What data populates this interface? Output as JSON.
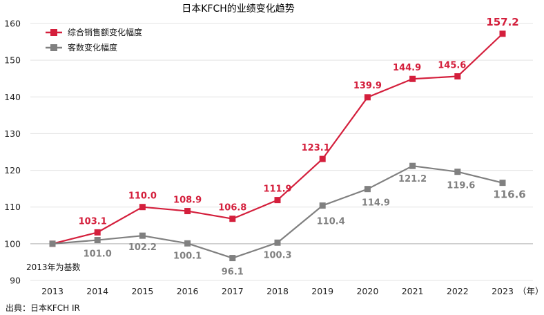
{
  "chart_data": {
    "type": "line",
    "title": "日本KFCH的业绩变化趋势",
    "x": [
      "2013",
      "2014",
      "2015",
      "2016",
      "2017",
      "2018",
      "2019",
      "2020",
      "2021",
      "2022",
      "2023"
    ],
    "x_unit": "（年）",
    "ylim": [
      90,
      160
    ],
    "yticks": [
      90,
      100,
      110,
      120,
      130,
      140,
      150,
      160
    ],
    "grid": true,
    "legend_position": "top-left",
    "series": [
      {
        "name": "综合销售额变化幅度",
        "color": "#d41f3c",
        "values": [
          100,
          103.1,
          110.0,
          108.9,
          106.8,
          111.9,
          123.1,
          139.9,
          144.9,
          145.6,
          157.2
        ],
        "labels": [
          "",
          "103.1",
          "110.0",
          "108.9",
          "106.8",
          "111.9",
          "123.1",
          "139.9",
          "144.9",
          "145.6",
          "157.2"
        ]
      },
      {
        "name": "客数变化幅度",
        "color": "#808080",
        "values": [
          100,
          101.0,
          102.2,
          100.1,
          96.1,
          100.3,
          110.4,
          114.9,
          121.2,
          119.6,
          116.6
        ],
        "labels": [
          "",
          "101.0",
          "102.2",
          "100.1",
          "96.1",
          "100.3",
          "110.4",
          "114.9",
          "121.2",
          "119.6",
          "116.6"
        ]
      }
    ],
    "annotations": {
      "baseline_note": "2013年为基数",
      "source": "出典：日本KFCH  IR"
    }
  }
}
